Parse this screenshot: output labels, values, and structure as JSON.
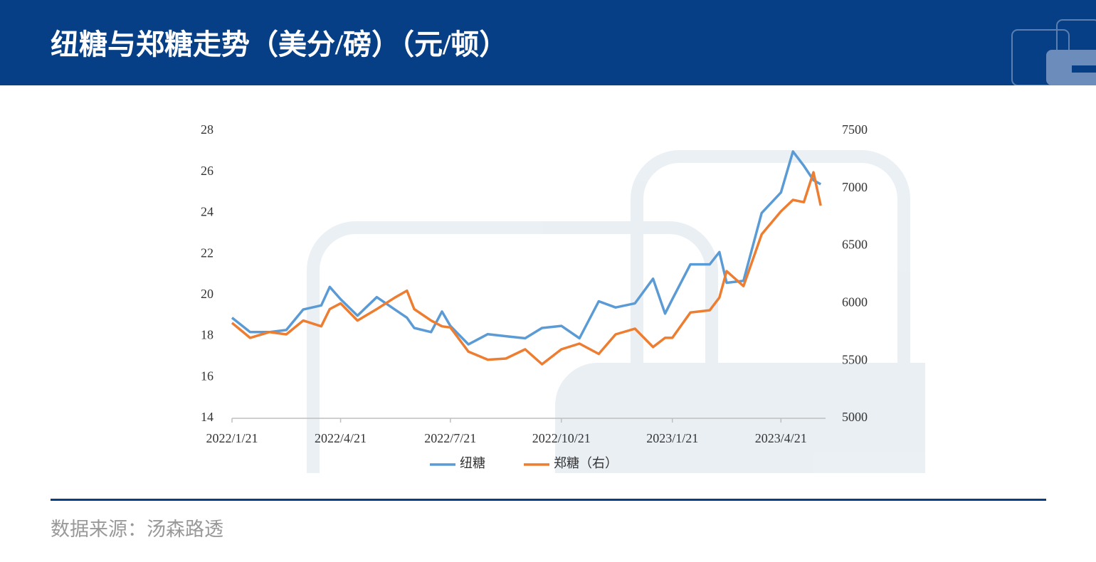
{
  "chart_data": {
    "type": "line",
    "title": "纽糖与郑糖走势（美分/磅）（元/顿）",
    "x": [
      "2022/1/21",
      "2022/2/5",
      "2022/2/21",
      "2022/3/7",
      "2022/3/21",
      "2022/4/5",
      "2022/4/12",
      "2022/4/21",
      "2022/5/5",
      "2022/5/21",
      "2022/6/5",
      "2022/6/15",
      "2022/6/21",
      "2022/7/5",
      "2022/7/14",
      "2022/7/21",
      "2022/8/5",
      "2022/8/21",
      "2022/9/5",
      "2022/9/21",
      "2022/10/5",
      "2022/10/21",
      "2022/11/5",
      "2022/11/21",
      "2022/12/5",
      "2022/12/21",
      "2023/1/5",
      "2023/1/15",
      "2023/1/21",
      "2023/2/5",
      "2023/2/21",
      "2023/3/1",
      "2023/3/7",
      "2023/3/21",
      "2023/4/5",
      "2023/4/21",
      "2023/5/1",
      "2023/5/10",
      "2023/5/18",
      "2023/5/24"
    ],
    "series": [
      {
        "name": "纽糖",
        "color": "#5b9bd5",
        "values": [
          18.9,
          18.2,
          18.2,
          18.3,
          19.3,
          19.5,
          20.4,
          19.8,
          19.0,
          19.9,
          19.3,
          18.9,
          18.4,
          18.2,
          19.2,
          18.5,
          17.6,
          18.1,
          18.0,
          17.9,
          18.4,
          18.5,
          17.9,
          19.7,
          19.4,
          19.6,
          20.8,
          19.1,
          19.8,
          21.5,
          21.5,
          22.1,
          20.6,
          20.7,
          24.0,
          25.0,
          27.0,
          26.3,
          25.6,
          25.4
        ]
      },
      {
        "name": "郑糖（右）",
        "color": "#ed7d31",
        "axis": "y2",
        "values": [
          5830,
          5700,
          5750,
          5730,
          5850,
          5800,
          5950,
          6000,
          5850,
          5950,
          6050,
          6110,
          5950,
          5850,
          5800,
          5790,
          5580,
          5510,
          5520,
          5600,
          5470,
          5600,
          5650,
          5560,
          5730,
          5780,
          5620,
          5700,
          5700,
          5920,
          5940,
          6050,
          6280,
          6150,
          6600,
          6800,
          6900,
          6880,
          7140,
          6850
        ]
      }
    ],
    "xlim": [
      "2022/1/21",
      "2023/5/28"
    ],
    "xticks": [
      "2022/1/21",
      "2022/4/21",
      "2022/7/21",
      "2022/10/21",
      "2023/1/21",
      "2023/4/21"
    ],
    "ylim": [
      14,
      28
    ],
    "yticks": [
      14,
      16,
      18,
      20,
      22,
      24,
      26,
      28
    ],
    "y2lim": [
      5000,
      7500
    ],
    "y2ticks": [
      5000,
      5500,
      6000,
      6500,
      7000,
      7500
    ],
    "legend": "bottom"
  },
  "source": "数据来源：汤森路透"
}
